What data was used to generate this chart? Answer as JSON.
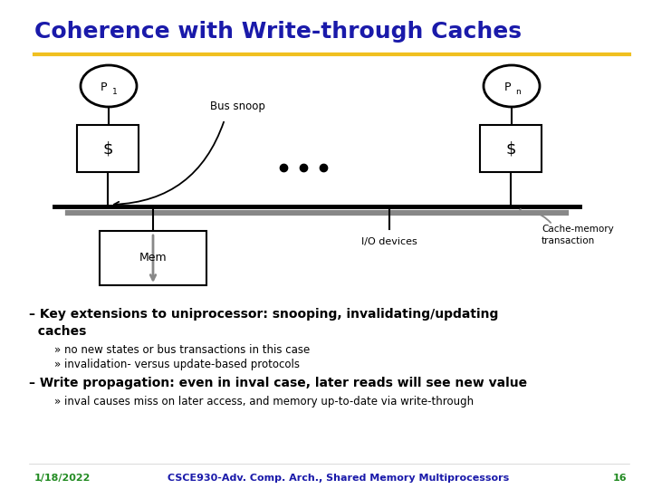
{
  "title": "Coherence with Write-through Caches",
  "title_color": "#1a1aaa",
  "title_fontsize": 18,
  "separator_color": "#f0c020",
  "bg_color": "#ffffff",
  "bullet1_dash": "– Key extensions to uniprocessor: snooping, invalidating/updating",
  "bullet1_cont": "  caches",
  "sub1a": "» no new states or bus transactions in this case",
  "sub1b": "» invalidation- versus update-based protocols",
  "bullet2": "– Write propagation: even in inval case, later reads will see new value",
  "sub2a": "» inval causes miss on later access, and memory up-to-date via write-through",
  "footer_date": "1/18/2022",
  "footer_course": "CSCE930-Adv. Comp. Arch., Shared Memory Multiprocessors",
  "footer_page": "16",
  "footer_color": "#228B22",
  "footer_course_color": "#1a1aaa"
}
